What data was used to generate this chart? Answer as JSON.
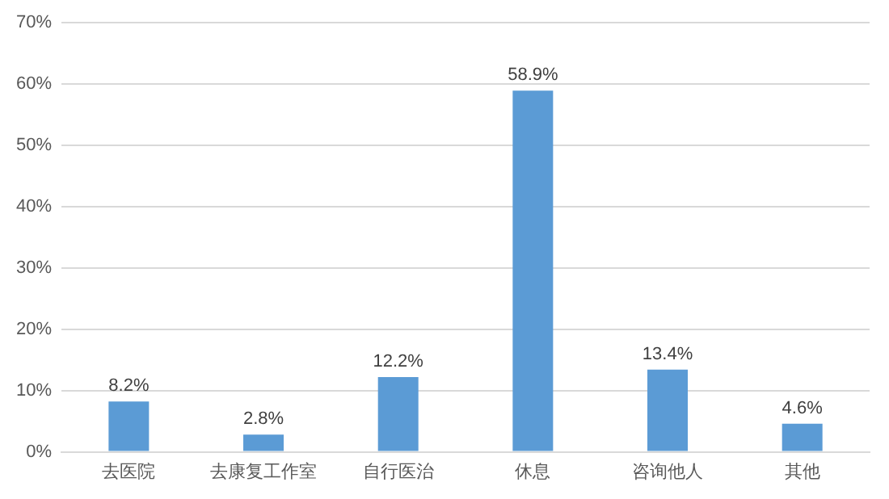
{
  "chart_data": {
    "type": "bar",
    "categories": [
      "去医院",
      "去康复工作室",
      "自行医治",
      "休息",
      "咨询他人",
      "其他"
    ],
    "values": [
      8.2,
      2.8,
      12.2,
      58.9,
      13.4,
      4.6
    ],
    "value_labels": [
      "8.2%",
      "2.8%",
      "12.2%",
      "58.9%",
      "13.4%",
      "4.6%"
    ],
    "color": "#5b9bd5",
    "ylim": [
      0,
      70
    ],
    "yticks": [
      {
        "value": 0,
        "label": "0%"
      },
      {
        "value": 10,
        "label": "10%"
      },
      {
        "value": 20,
        "label": "20%"
      },
      {
        "value": 30,
        "label": "30%"
      },
      {
        "value": 40,
        "label": "40%"
      },
      {
        "value": 50,
        "label": "50%"
      },
      {
        "value": 60,
        "label": "60%"
      },
      {
        "value": 70,
        "label": "70%"
      }
    ],
    "grid": "y",
    "legend": false
  }
}
